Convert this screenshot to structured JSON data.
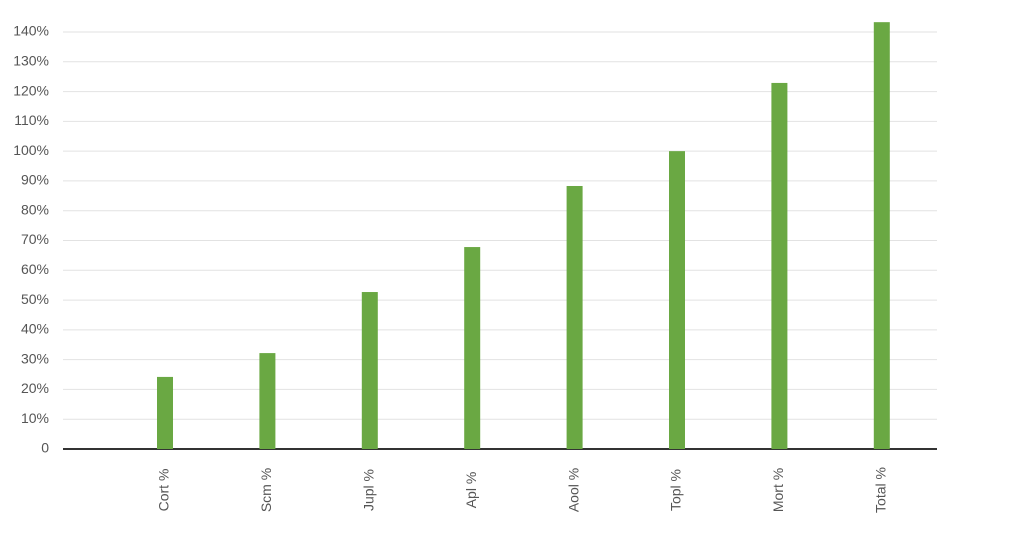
{
  "chart_data": {
    "type": "bar",
    "categories": [
      "Cort %",
      "Scm %",
      "Jupl %",
      "Apl %",
      "Aool %",
      "Topl %",
      "Mort %",
      "Total %"
    ],
    "values": [
      24.2,
      32.2,
      52.7,
      67.8,
      88.3,
      100,
      122.9,
      143.3
    ],
    "color": "#6aa843",
    "ylim": [
      0,
      140
    ],
    "yticks": [
      0,
      {
        "value": 10,
        "label": "10%"
      },
      {
        "value": 20,
        "label": "20%"
      },
      {
        "value": 30,
        "label": "30%"
      },
      {
        "value": 40,
        "label": "40%"
      },
      {
        "value": 50,
        "label": "50%"
      },
      {
        "value": 60,
        "label": "60%"
      },
      {
        "value": 70,
        "label": "70%"
      },
      {
        "value": 80,
        "label": "80%"
      },
      {
        "value": 90,
        "label": "90%"
      },
      {
        "value": 100,
        "label": "100%"
      },
      {
        "value": 110,
        "label": "110%"
      },
      {
        "value": 120,
        "label": "120%"
      },
      {
        "value": 130,
        "label": "130%"
      },
      {
        "value": 140,
        "label": "140%"
      }
    ],
    "grid": true
  }
}
